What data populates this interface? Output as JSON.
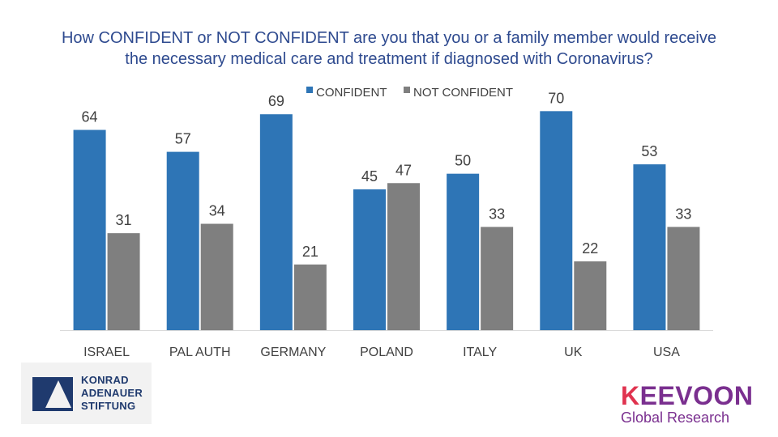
{
  "chart_data": {
    "type": "bar",
    "title": "How CONFIDENT or NOT CONFIDENT are you that you or a family member would receive the necessary medical care and treatment if diagnosed with  Coronavirus?",
    "title_lines": [
      "How CONFIDENT or NOT CONFIDENT are you that you or a family member would receive",
      "the necessary medical care and treatment if diagnosed with  Coronavirus?"
    ],
    "categories": [
      "ISRAEL",
      "PAL AUTH",
      "GERMANY",
      "POLAND",
      "ITALY",
      "UK",
      "USA"
    ],
    "series": [
      {
        "name": "CONFIDENT",
        "color": "#2e75b6",
        "values": [
          64,
          57,
          69,
          45,
          50,
          70,
          53
        ]
      },
      {
        "name": "NOT CONFIDENT",
        "color": "#7f7f7f",
        "values": [
          31,
          34,
          21,
          47,
          33,
          22,
          33
        ]
      }
    ],
    "legend_position": "top-center",
    "ylim": [
      0,
      75
    ],
    "grid": false,
    "xlabel": "",
    "ylabel": ""
  },
  "logos": {
    "left": [
      "KONRAD",
      "ADENAUER",
      "STIFTUNG"
    ],
    "right_brand_first": "K",
    "right_brand_rest": "EEVOON",
    "right_sub": "Global Research"
  }
}
